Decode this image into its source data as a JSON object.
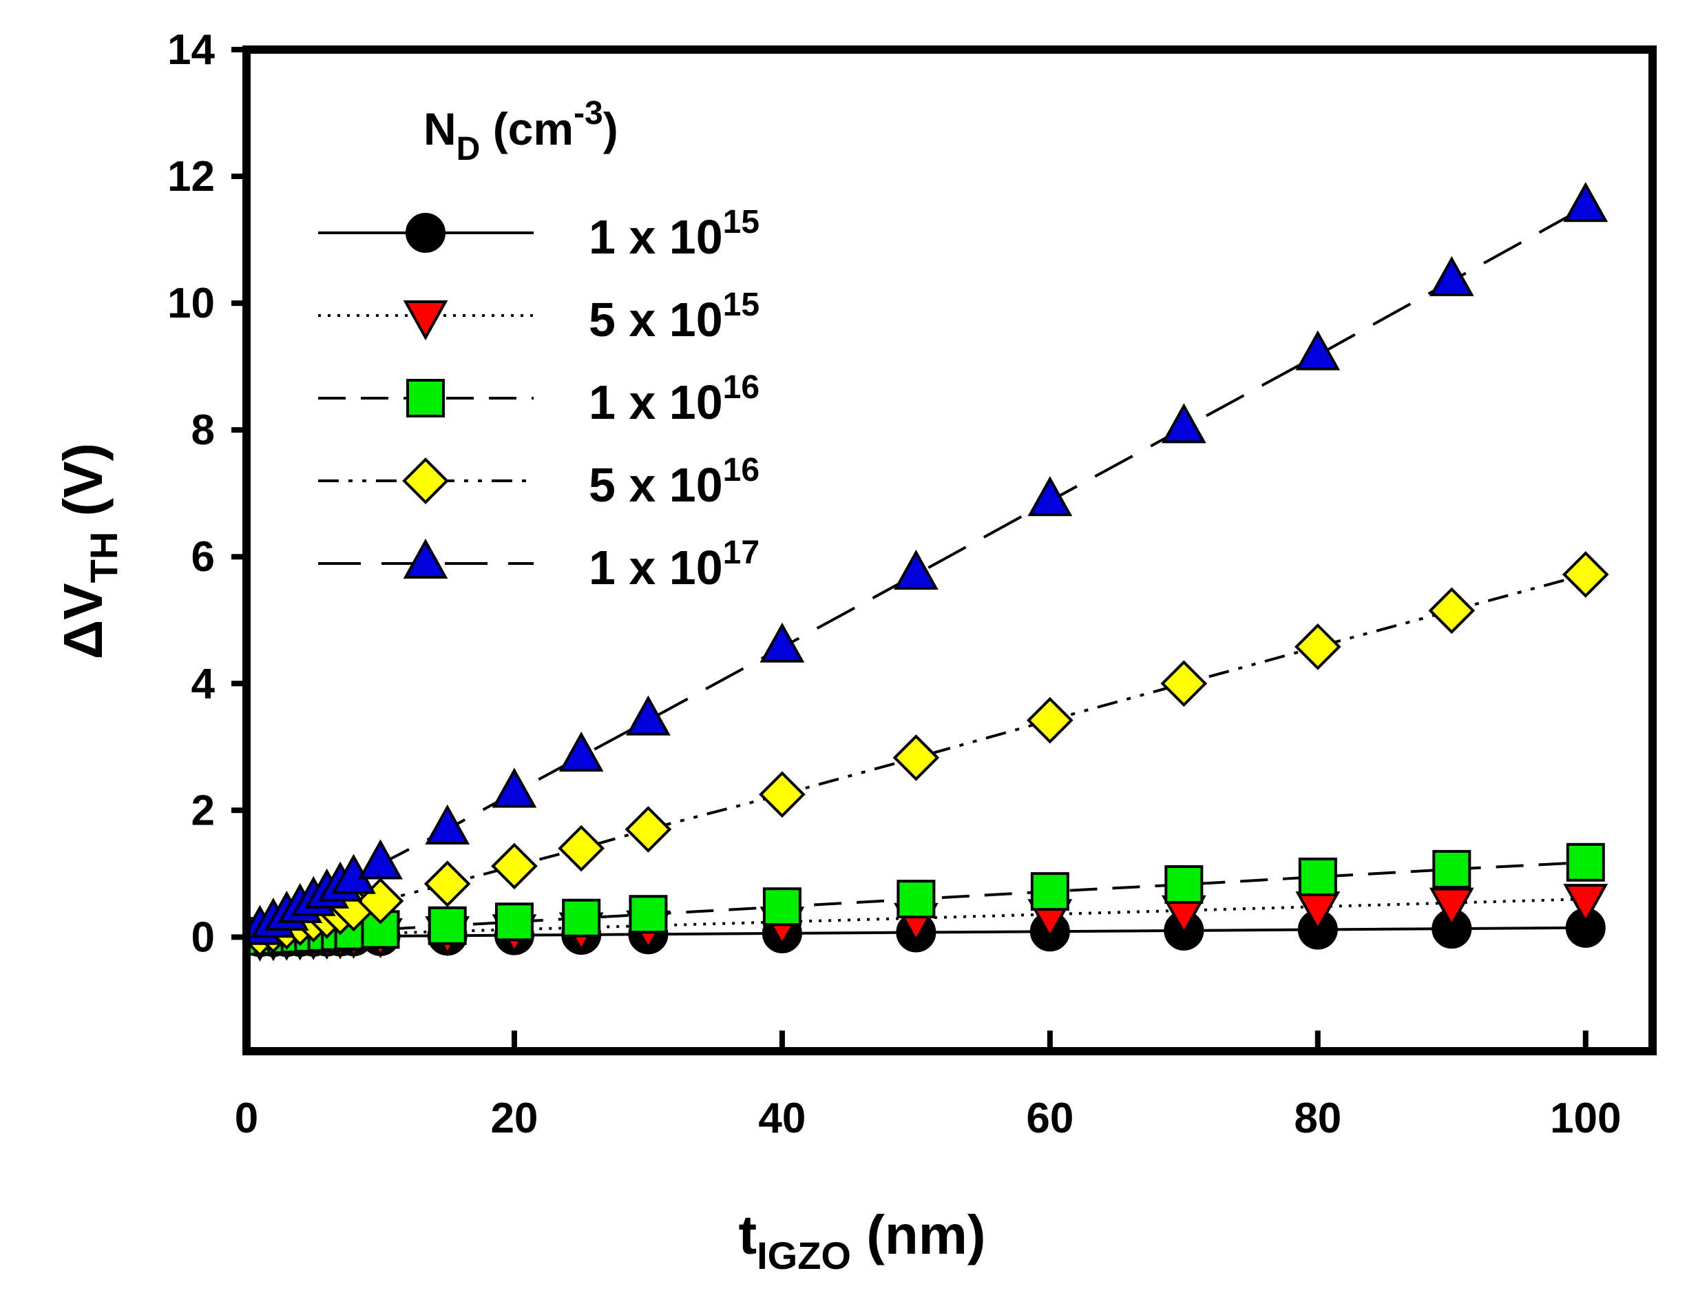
{
  "chart_data": {
    "type": "line",
    "xlabel": {
      "main": "t",
      "sub": "IGZO",
      "unit": "(nm)"
    },
    "ylabel": {
      "main": "ΔV",
      "sub": "TH",
      "unit": "(V)"
    },
    "xlim": [
      0,
      105
    ],
    "ylim": [
      -1.8,
      14
    ],
    "xticks": [
      0,
      20,
      40,
      60,
      80,
      100
    ],
    "yticks": [
      0,
      2,
      4,
      6,
      8,
      10,
      12,
      14
    ],
    "legend": {
      "title_main": "N",
      "title_sub": "D",
      "title_unit_pre": "(cm",
      "title_exp": "-3",
      "title_unit_post": ")",
      "placement": "top-left"
    },
    "x": [
      1,
      2,
      3,
      4,
      5,
      6,
      7,
      8,
      10,
      15,
      20,
      25,
      30,
      40,
      50,
      60,
      70,
      80,
      90,
      100
    ],
    "series": [
      {
        "name": "1 x 10^15",
        "label_base": "1 x 10",
        "label_exp": "15",
        "marker": "circle",
        "color": "#000000",
        "line_style": "solid",
        "values": [
          0.001,
          0.002,
          0.003,
          0.005,
          0.007,
          0.009,
          0.011,
          0.014,
          0.016,
          0.023,
          0.03,
          0.037,
          0.044,
          0.059,
          0.074,
          0.088,
          0.103,
          0.118,
          0.133,
          0.147
        ]
      },
      {
        "name": "5 x 10^15",
        "label_base": "5 x 10",
        "label_exp": "15",
        "marker": "triangle-down",
        "color": "#ff0000",
        "line_style": "dotted",
        "values": [
          0.006,
          0.012,
          0.018,
          0.024,
          0.03,
          0.036,
          0.042,
          0.048,
          0.06,
          0.09,
          0.12,
          0.15,
          0.18,
          0.24,
          0.3,
          0.36,
          0.42,
          0.48,
          0.54,
          0.6
        ]
      },
      {
        "name": "1 x 10^16",
        "label_base": "1 x 10",
        "label_exp": "16",
        "marker": "square",
        "color": "#00ee00",
        "line_style": "dashed",
        "values": [
          0.012,
          0.024,
          0.036,
          0.048,
          0.06,
          0.072,
          0.084,
          0.096,
          0.12,
          0.18,
          0.24,
          0.3,
          0.36,
          0.48,
          0.6,
          0.72,
          0.83,
          0.95,
          1.07,
          1.18
        ]
      },
      {
        "name": "5 x 10^16",
        "label_base": "5 x 10",
        "label_exp": "16",
        "marker": "diamond",
        "color": "#ffff00",
        "line_style": "dash-dot-dot",
        "values": [
          0.057,
          0.114,
          0.171,
          0.228,
          0.285,
          0.342,
          0.4,
          0.456,
          0.57,
          0.84,
          1.12,
          1.4,
          1.7,
          2.25,
          2.83,
          3.42,
          4.0,
          4.58,
          5.15,
          5.72
        ]
      },
      {
        "name": "1 x 10^17",
        "label_base": "1 x 10",
        "label_exp": "17",
        "marker": "triangle-up",
        "color": "#0000dd",
        "line_style": "long-dash",
        "values": [
          0.115,
          0.23,
          0.34,
          0.46,
          0.57,
          0.69,
          0.8,
          0.92,
          1.15,
          1.7,
          2.28,
          2.85,
          3.42,
          4.57,
          5.72,
          6.88,
          8.03,
          9.18,
          10.35,
          11.52
        ]
      }
    ]
  }
}
